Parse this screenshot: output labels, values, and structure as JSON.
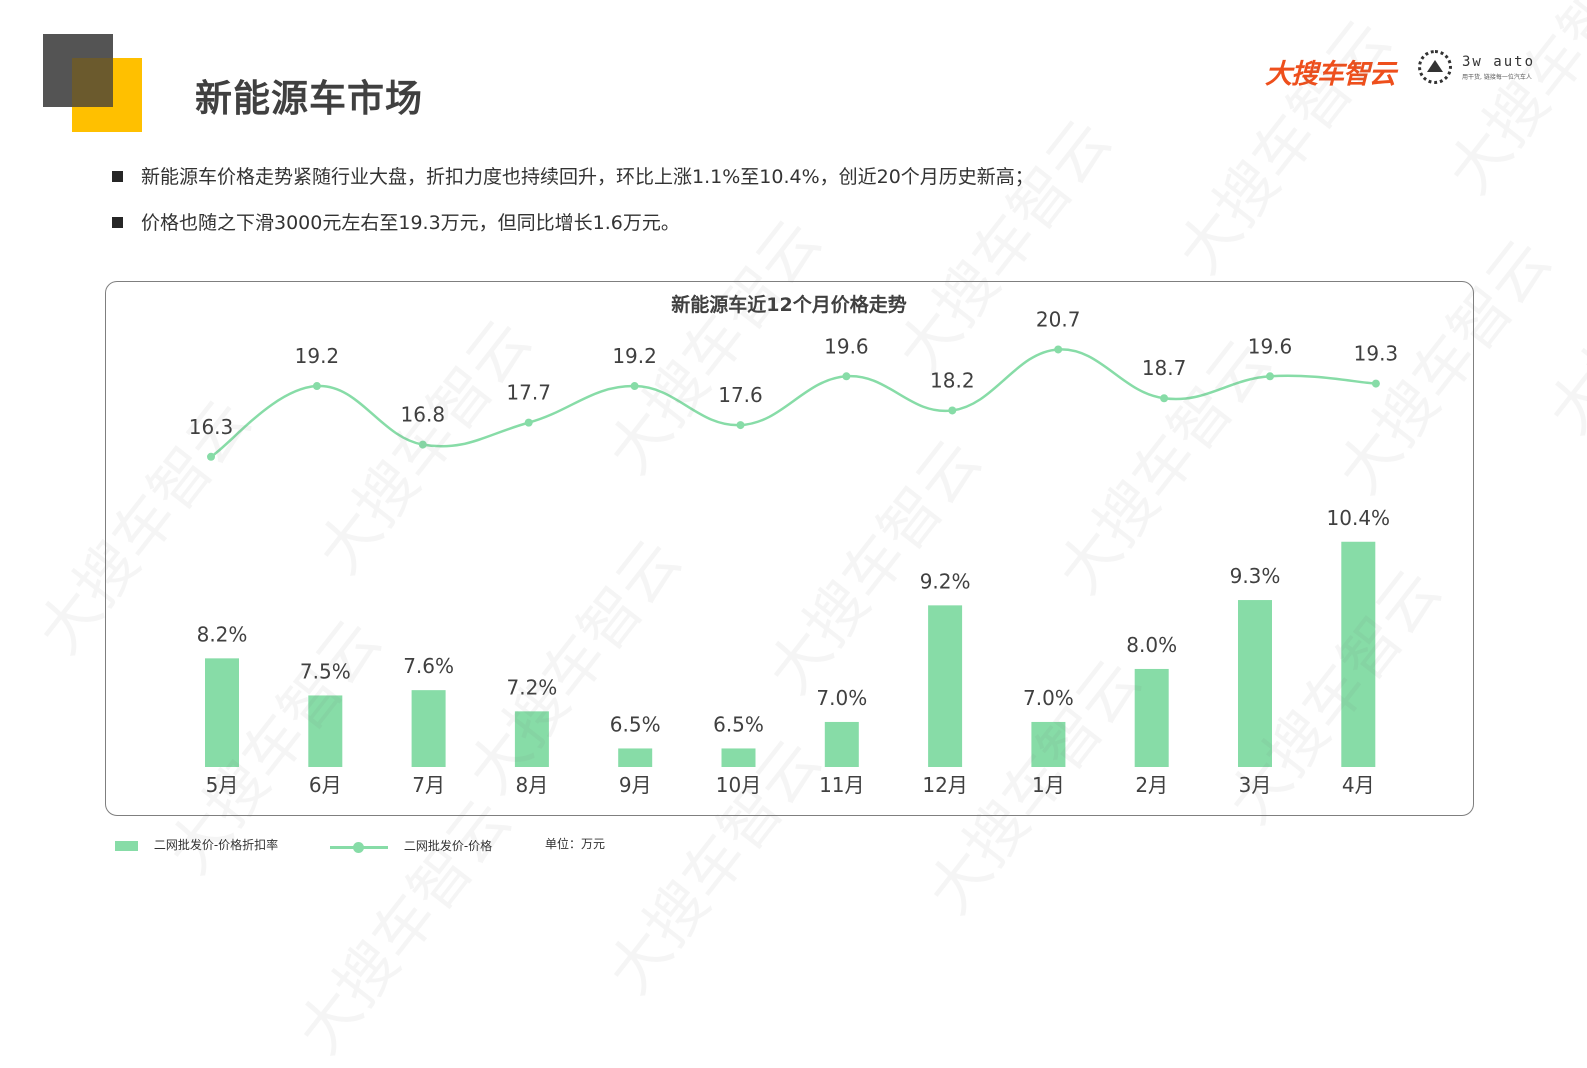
{
  "header": {
    "title": "新能源车市场",
    "brand": "大搜车智云",
    "partner_logo_text": "3w auto",
    "partner_tagline": "用干货, 链接每一位汽车人"
  },
  "bullets": [
    "新能源车价格走势紧随行业大盘，折扣力度也持续回升，环比上涨1.1%至10.4%，创近20个月历史新高；",
    "价格也随之下滑3000元左右至19.3万元，但同比增长1.6万元。"
  ],
  "watermark_text": "大搜车智云",
  "colors": {
    "accent_yellow": "#ffc000",
    "accent_gray": "#545454",
    "series": "#87dca7",
    "brand": "#ee4f1c"
  },
  "chart_data": {
    "type": "bar+line",
    "title": "新能源车近12个月价格走势",
    "categories": [
      "5月",
      "6月",
      "7月",
      "8月",
      "9月",
      "10月",
      "11月",
      "12月",
      "1月",
      "2月",
      "3月",
      "4月"
    ],
    "series": [
      {
        "name": "二网批发价-价格折扣率",
        "type": "bar",
        "values": [
          8.2,
          7.5,
          7.6,
          7.2,
          6.5,
          6.5,
          7.0,
          9.2,
          7.0,
          8.0,
          9.3,
          10.4
        ],
        "labels": [
          "8.2%",
          "7.5%",
          "7.6%",
          "7.2%",
          "6.5%",
          "6.5%",
          "7.0%",
          "9.2%",
          "7.0%",
          "8.0%",
          "9.3%",
          "10.4%"
        ]
      },
      {
        "name": "二网批发价-价格",
        "type": "line",
        "values": [
          16.3,
          19.2,
          16.8,
          17.7,
          19.2,
          17.6,
          19.6,
          18.2,
          20.7,
          18.7,
          19.6,
          19.3
        ],
        "labels": [
          "16.3",
          "19.2",
          "16.8",
          "17.7",
          "19.2",
          "17.6",
          "19.6",
          "18.2",
          "20.7",
          "18.7",
          "19.6",
          "19.3"
        ]
      }
    ],
    "unit_label": "单位：万元",
    "legend_position": "bottom-left",
    "grid": false
  }
}
